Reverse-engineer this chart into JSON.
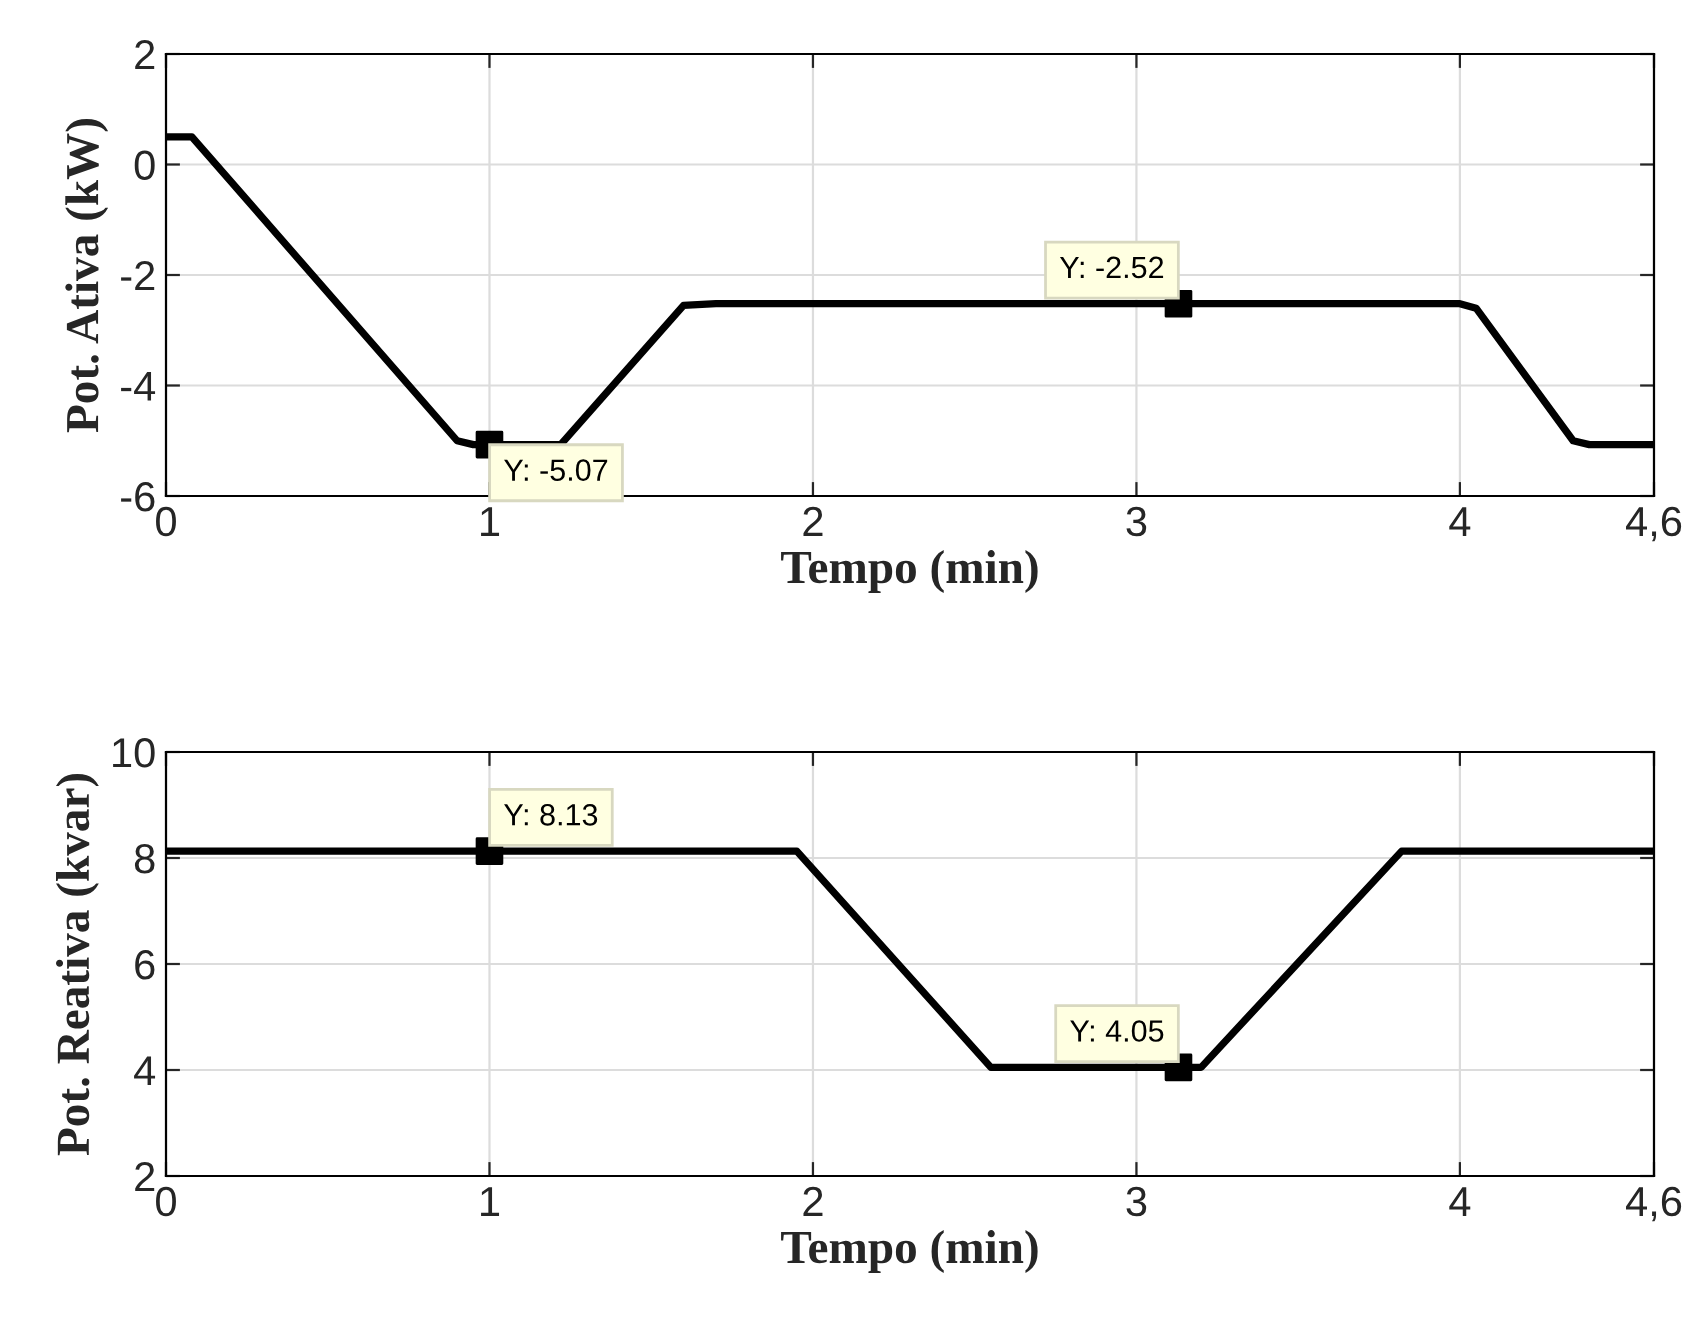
{
  "chart_data": [
    {
      "type": "line",
      "xlabel": "Tempo (min)",
      "ylabel": "Pot. Ativa (kW)",
      "grid": true,
      "line_style": "solid",
      "marker": "none",
      "xlim": [
        0,
        4.6
      ],
      "xticks": [
        0,
        1,
        2,
        3,
        4,
        {
          "value": 4.6,
          "label": "4,6"
        }
      ],
      "ylim": [
        -6,
        2
      ],
      "yticks": [
        -6,
        -4,
        -2,
        0,
        2
      ],
      "series": [
        {
          "color": "#000000",
          "x": [
            0,
            0.08,
            0.9,
            0.95,
            1.22,
            1.6,
            1.7,
            4.0,
            4.05,
            4.35,
            4.4,
            4.6
          ],
          "values": [
            0.5,
            0.5,
            -5.0,
            -5.07,
            -5.07,
            -2.55,
            -2.52,
            -2.52,
            -2.6,
            -5.0,
            -5.07,
            -5.07
          ]
        },
        {
          "type": "scatter",
          "marker": "square",
          "color": "#000000",
          "x": [
            1.0,
            3.13
          ],
          "values": [
            -5.07,
            -2.52
          ],
          "value_labels": [
            "Y: -5.07",
            "Y: -2.52"
          ]
        }
      ]
    },
    {
      "type": "line",
      "xlabel": "Tempo (min)",
      "ylabel": "Pot. Reativa (kvar)",
      "grid": true,
      "line_style": "solid",
      "marker": "none",
      "xlim": [
        0,
        4.6
      ],
      "xticks": [
        0,
        1,
        2,
        3,
        4,
        {
          "value": 4.6,
          "label": "4,6"
        }
      ],
      "ylim": [
        2,
        10
      ],
      "yticks": [
        2,
        4,
        6,
        8,
        10
      ],
      "series": [
        {
          "color": "#000000",
          "x": [
            0,
            1.95,
            2.55,
            3.2,
            3.82,
            4.6
          ],
          "values": [
            8.13,
            8.13,
            4.05,
            4.05,
            8.13,
            8.13
          ]
        },
        {
          "type": "scatter",
          "marker": "square",
          "color": "#000000",
          "x": [
            1.0,
            3.13
          ],
          "values": [
            8.13,
            4.05
          ],
          "value_labels": [
            "Y: 8.13",
            "Y: 4.05"
          ]
        }
      ]
    }
  ]
}
